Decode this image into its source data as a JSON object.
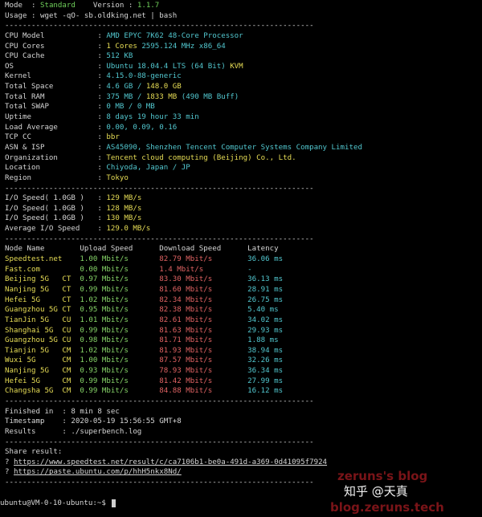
{
  "header": {
    "mode_label": "Mode  : ",
    "mode_value": "Standard",
    "version_label": "    Version : ",
    "version_value": "1.1.7",
    "usage_label": "Usage : ",
    "usage_value": "wget -qO- sb.oldking.net | bash"
  },
  "system_info": [
    {
      "label": "CPU Model",
      "parts": [
        [
          "AMD EPYC 7K62 48-Core Processor",
          "c"
        ]
      ]
    },
    {
      "label": "CPU Cores",
      "parts": [
        [
          "1 Cores ",
          "y"
        ],
        [
          "2595.124 MHz x86_64",
          "c"
        ]
      ]
    },
    {
      "label": "CPU Cache",
      "parts": [
        [
          "512 KB",
          "c"
        ]
      ]
    },
    {
      "label": "OS",
      "parts": [
        [
          "Ubuntu 18.04.4 LTS (64 Bit) ",
          "c"
        ],
        [
          "KVM",
          "y"
        ]
      ]
    },
    {
      "label": "Kernel",
      "parts": [
        [
          "4.15.0-88-generic",
          "c"
        ]
      ]
    },
    {
      "label": "Total Space",
      "parts": [
        [
          "4.6 GB / ",
          "c"
        ],
        [
          "148.0 GB",
          "y"
        ]
      ]
    },
    {
      "label": "Total RAM",
      "parts": [
        [
          "375 MB / ",
          "c"
        ],
        [
          "1833 MB",
          "y"
        ],
        [
          " (490 MB Buff)",
          "c"
        ]
      ]
    },
    {
      "label": "Total SWAP",
      "parts": [
        [
          "0 MB / 0 MB",
          "c"
        ]
      ]
    },
    {
      "label": "Uptime",
      "parts": [
        [
          "8 days 19 hour 33 min",
          "c"
        ]
      ]
    },
    {
      "label": "Load Average",
      "parts": [
        [
          "0.00, 0.09, 0.16",
          "c"
        ]
      ]
    },
    {
      "label": "TCP CC",
      "parts": [
        [
          "bbr",
          "y"
        ]
      ]
    },
    {
      "label": "ASN & ISP",
      "parts": [
        [
          "AS45090, Shenzhen Tencent Computer Systems Company Limited",
          "c"
        ]
      ]
    },
    {
      "label": "Organization",
      "parts": [
        [
          "Tencent cloud computing (Beijing) Co., Ltd.",
          "y"
        ]
      ]
    },
    {
      "label": "Location",
      "parts": [
        [
          "Chiyoda, Japan / JP",
          "c"
        ]
      ]
    },
    {
      "label": "Region",
      "parts": [
        [
          "Tokyo",
          "y"
        ]
      ]
    }
  ],
  "io": [
    {
      "label": "I/O Speed( 1.0GB )",
      "value": "129 MB/s"
    },
    {
      "label": "I/O Speed( 1.0GB )",
      "value": "128 MB/s"
    },
    {
      "label": "I/O Speed( 1.0GB )",
      "value": "130 MB/s"
    },
    {
      "label": "Average I/O Speed",
      "value": "129.0 MB/s"
    }
  ],
  "speed_table": {
    "columns": [
      "Node Name",
      "Upload Speed",
      "Download Speed",
      "Latency"
    ],
    "rows": [
      {
        "node": "Speedtest.net",
        "isp": "",
        "upload": "1.00 Mbit/s",
        "download": "82.79 Mbit/s",
        "latency": "36.06 ms"
      },
      {
        "node": "Fast.com",
        "isp": "",
        "upload": "0.00 Mbit/s",
        "download": "1.4 Mbit/s",
        "latency": "-"
      },
      {
        "node": "Beijing 5G",
        "isp": "CT",
        "upload": "0.97 Mbit/s",
        "download": "83.30 Mbit/s",
        "latency": "36.13 ms"
      },
      {
        "node": "Nanjing 5G",
        "isp": "CT",
        "upload": "0.99 Mbit/s",
        "download": "81.60 Mbit/s",
        "latency": "28.91 ms"
      },
      {
        "node": "Hefei 5G",
        "isp": "CT",
        "upload": "1.02 Mbit/s",
        "download": "82.34 Mbit/s",
        "latency": "26.75 ms"
      },
      {
        "node": "Guangzhou 5G",
        "isp": "CT",
        "upload": "0.95 Mbit/s",
        "download": "82.38 Mbit/s",
        "latency": "5.40 ms"
      },
      {
        "node": "TianJin 5G",
        "isp": "CU",
        "upload": "1.01 Mbit/s",
        "download": "82.61 Mbit/s",
        "latency": "34.02 ms"
      },
      {
        "node": "Shanghai 5G",
        "isp": "CU",
        "upload": "0.99 Mbit/s",
        "download": "81.63 Mbit/s",
        "latency": "29.93 ms"
      },
      {
        "node": "Guangzhou 5G",
        "isp": "CU",
        "upload": "0.98 Mbit/s",
        "download": "81.71 Mbit/s",
        "latency": "1.88 ms"
      },
      {
        "node": "Tianjin 5G",
        "isp": "CM",
        "upload": "1.02 Mbit/s",
        "download": "81.93 Mbit/s",
        "latency": "38.94 ms"
      },
      {
        "node": "Wuxi 5G",
        "isp": "CM",
        "upload": "1.00 Mbit/s",
        "download": "87.57 Mbit/s",
        "latency": "32.26 ms"
      },
      {
        "node": "Nanjing 5G",
        "isp": "CM",
        "upload": "0.93 Mbit/s",
        "download": "78.93 Mbit/s",
        "latency": "36.34 ms"
      },
      {
        "node": "Hefei 5G",
        "isp": "CM",
        "upload": "0.99 Mbit/s",
        "download": "81.42 Mbit/s",
        "latency": "27.99 ms"
      },
      {
        "node": "Changsha 5G",
        "isp": "CM",
        "upload": "0.99 Mbit/s",
        "download": "84.88 Mbit/s",
        "latency": "16.12 ms"
      }
    ]
  },
  "summary": [
    {
      "label": "Finished in",
      "value": "8 min 8 sec"
    },
    {
      "label": "Timestamp",
      "value": "2020-05-19 15:56:55 GMT+8"
    },
    {
      "label": "Results",
      "value": "./superbench.log"
    }
  ],
  "share": {
    "title": "Share result:",
    "links": [
      "https://www.speedtest.net/result/c/ca7106b1-be0a-491d-a369-0d41095f7924",
      "https://paste.ubuntu.com/p/hhH5nkx8Nd/"
    ]
  },
  "prompt": "ubuntu@VM-0-10-ubuntu:~$ ",
  "watermark": {
    "zhihu": "知乎 @天真",
    "blog_name": "zeruns's blog",
    "blog_url": "blog.zeruns.tech"
  },
  "colors": {
    "background": "#000000",
    "label": "#d6d6d6",
    "cyan": "#52c7cf",
    "yellow": "#e6dc55",
    "green": "#86d468",
    "red": "#e06363"
  }
}
